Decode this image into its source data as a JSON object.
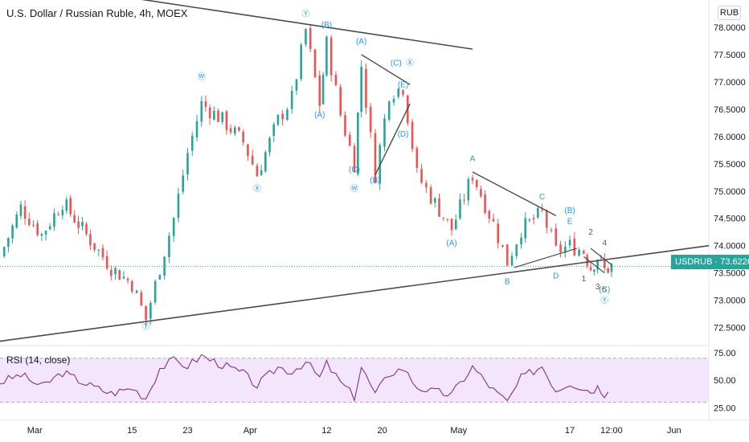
{
  "header": {
    "title": "U.S. Dollar / Russian Ruble, 4h, MOEX",
    "currency_button": "RUB"
  },
  "price_tag": {
    "symbol": "USDRUB",
    "value": "73.6226",
    "text": "USDRUB · 73.6226"
  },
  "rsi": {
    "title": "RSI (14, close)",
    "levels": [
      "75.00",
      "50.00",
      "25.00"
    ],
    "upper": 70,
    "lower": 30
  },
  "colors": {
    "up": "#26a69a",
    "down": "#ef5350",
    "wave_label": "#2196f3",
    "rsi_line": "#7e2f9d",
    "rsi_band": "#f3e5fb",
    "trendline": "#4a4a4a"
  },
  "chart_data": [
    {
      "type": "candlestick",
      "title": "U.S. Dollar / Russian Ruble, 4h, MOEX",
      "x_ticks": [
        "Mar",
        "15",
        "23",
        "Apr",
        "12",
        "20",
        "May",
        "17",
        "12:00",
        "Jun"
      ],
      "y_ticks": [
        "78.0000",
        "77.5000",
        "77.0000",
        "76.5000",
        "76.0000",
        "75.5000",
        "75.0000",
        "74.5000",
        "74.0000",
        "73.5000",
        "73.0000",
        "72.5000"
      ],
      "ylim": [
        72.2,
        78.5
      ],
      "last_price": 73.6226,
      "price_path": [
        [
          "Feb 24",
          73.8
        ],
        [
          "Feb 27",
          74.7
        ],
        [
          "Mar 02",
          74.2
        ],
        [
          "Mar 05",
          74.8
        ],
        [
          "Mar 09",
          74.1
        ],
        [
          "Mar 12",
          73.6
        ],
        [
          "Mar 15",
          73.3
        ],
        [
          "Mar 17",
          72.65
        ],
        [
          "Mar 19",
          73.6
        ],
        [
          "Mar 21",
          74.5
        ],
        [
          "Mar 23",
          75.7
        ],
        [
          "Mar 25",
          76.6
        ],
        [
          "Mar 28",
          76.3
        ],
        [
          "Mar 31",
          75.9
        ],
        [
          "Apr 02",
          75.3
        ],
        [
          "Apr 05",
          76.3
        ],
        [
          "Apr 07",
          76.7
        ],
        [
          "Apr 09",
          77.95
        ],
        [
          "Apr 11",
          76.6
        ],
        [
          "Apr 12",
          77.7
        ],
        [
          "Apr 14",
          76.4
        ],
        [
          "Apr 16",
          75.5
        ],
        [
          "Apr 17",
          77.3
        ],
        [
          "Apr 19",
          75.3
        ],
        [
          "Apr 21",
          76.8
        ],
        [
          "Apr 23",
          76.9
        ],
        [
          "Apr 25",
          75.3
        ],
        [
          "Apr 27",
          74.9
        ],
        [
          "Apr 30",
          74.3
        ],
        [
          "May 03",
          75.3
        ],
        [
          "May 06",
          74.4
        ],
        [
          "May 08",
          73.7
        ],
        [
          "May 10",
          74.3
        ],
        [
          "May 13",
          74.6
        ],
        [
          "May 15",
          73.9
        ],
        [
          "May 17",
          74.0
        ],
        [
          "May 19",
          73.9
        ],
        [
          "May 20",
          73.6
        ],
        [
          "May 21",
          73.8
        ],
        [
          "May 22",
          73.55
        ],
        [
          "May 23",
          73.62
        ]
      ]
    },
    {
      "type": "line",
      "title": "RSI (14, close)",
      "ylim": [
        15,
        80
      ],
      "y_ticks": [
        "75.00",
        "50.00",
        "25.00"
      ],
      "hlines": [
        70,
        30
      ],
      "series": [
        {
          "name": "RSI (14, close)",
          "values": [
            48,
            55,
            44,
            57,
            45,
            38,
            43,
            34,
            61,
            68,
            63,
            72,
            64,
            56,
            45,
            62,
            58,
            67,
            52,
            65,
            48,
            35,
            62,
            37,
            56,
            61,
            44,
            40,
            37,
            62,
            41,
            30,
            52,
            63,
            41,
            48,
            43,
            40,
            44,
            38,
            47
          ]
        }
      ]
    }
  ],
  "wave_labels": {
    "blue": [
      {
        "text": "Ⓨ",
        "date": "Mar 17",
        "price": 72.48
      },
      {
        "text": "Ⓦ",
        "date": "Mar 25",
        "price": 77.05
      },
      {
        "text": "Ⓧ",
        "date": "Apr 02",
        "price": 75.0
      },
      {
        "text": "Ⓨ",
        "date": "Apr 09",
        "price": 78.2
      },
      {
        "text": "(A)",
        "date": "Apr 11",
        "price": 76.35
      },
      {
        "text": "(B)",
        "date": "Apr 12",
        "price": 78.0
      },
      {
        "text": "(C)",
        "date": "Apr 16",
        "price": 75.35
      },
      {
        "text": "Ⓦ",
        "date": "Apr 16",
        "price": 75.0
      },
      {
        "text": "(A)",
        "date": "Apr 17",
        "price": 77.7
      },
      {
        "text": "(B)",
        "date": "Apr 19",
        "price": 75.15
      },
      {
        "text": "(D)",
        "date": "Apr 23",
        "price": 76.0
      },
      {
        "text": "(E)",
        "date": "Apr 23",
        "price": 76.9
      },
      {
        "text": "(C)",
        "date": "Apr 22",
        "price": 77.3
      },
      {
        "text": "Ⓧ",
        "date": "Apr 24",
        "price": 77.3
      },
      {
        "text": "A",
        "date": "May 03",
        "price": 75.55
      },
      {
        "text": "(A)",
        "date": "Apr 30",
        "price": 74.0
      },
      {
        "text": "B",
        "date": "May 08",
        "price": 73.3
      },
      {
        "text": "C",
        "date": "May 13",
        "price": 74.85
      },
      {
        "text": "D",
        "date": "May 15",
        "price": 73.4
      },
      {
        "text": "E",
        "date": "May 17",
        "price": 74.4
      },
      {
        "text": "(B)",
        "date": "May 17",
        "price": 74.6
      },
      {
        "text": "(C)",
        "date": "May 22",
        "price": 73.15
      },
      {
        "text": "Ⓨ",
        "date": "May 22",
        "price": 72.95
      }
    ],
    "gray": [
      {
        "text": "1",
        "date": "May 19",
        "price": 73.35
      },
      {
        "text": "2",
        "date": "May 20",
        "price": 74.2
      },
      {
        "text": "3",
        "date": "May 21",
        "price": 73.2
      },
      {
        "text": "4",
        "date": "May 22",
        "price": 74.0
      },
      {
        "text": "5",
        "date": "May 22",
        "price": 73.15
      }
    ]
  }
}
